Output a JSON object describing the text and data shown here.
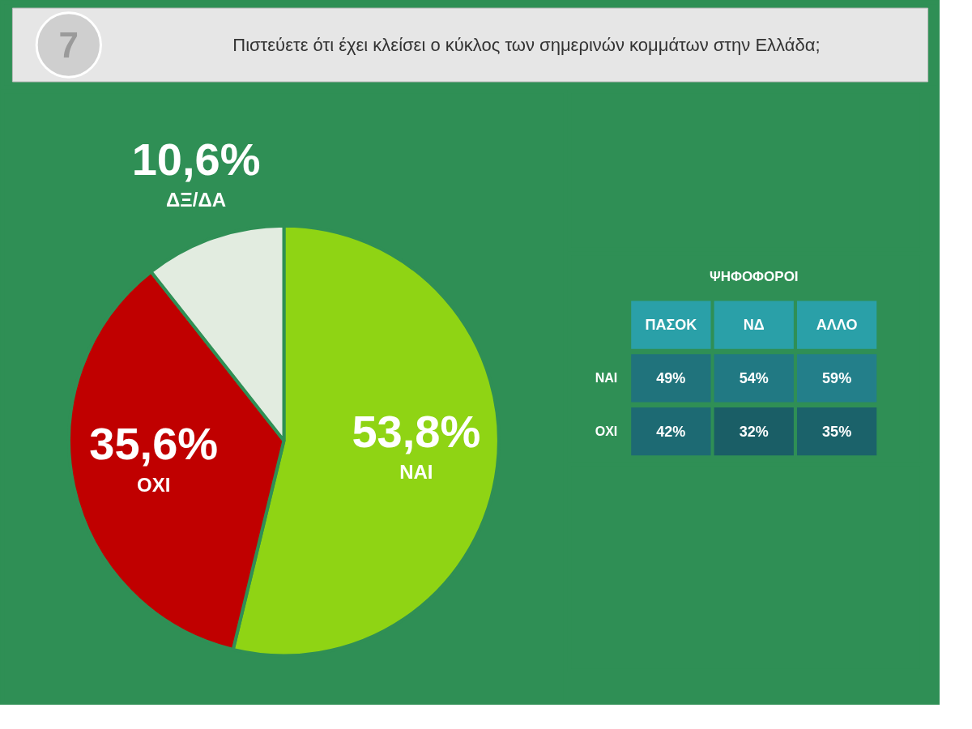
{
  "chart_data": [
    {
      "type": "pie",
      "title": "Πιστεύετε ότι έχει κλείσει ο κύκλος των σημερινών κομμάτων στην Ελλάδα;",
      "annotations": [
        "7"
      ],
      "categories": [
        "ΝΑΙ",
        "ΟΧΙ",
        "ΔΞ/ΔΑ"
      ],
      "values": [
        53.8,
        35.6,
        10.6
      ],
      "colors": [
        "#8fd414",
        "#c00000",
        "#e2ece0"
      ],
      "value_labels": [
        "53,8%",
        "35,6%",
        "10,6%"
      ]
    },
    {
      "type": "heatmap",
      "title": "ΨΗΦΟΦΟΡΟΙ",
      "categories": [
        "ΠΑΣΟΚ",
        "ΝΔ",
        "ΑΛΛΟ"
      ],
      "y_categories": [
        "ΝΑΙ",
        "ΟΧΙ"
      ],
      "cells": [
        [
          49,
          54,
          59
        ],
        [
          42,
          32,
          35
        ]
      ],
      "cell_labels": [
        [
          "49%",
          "54%",
          "59%"
        ],
        [
          "42%",
          "32%",
          "35%"
        ]
      ],
      "color": "#1f6f78"
    }
  ]
}
